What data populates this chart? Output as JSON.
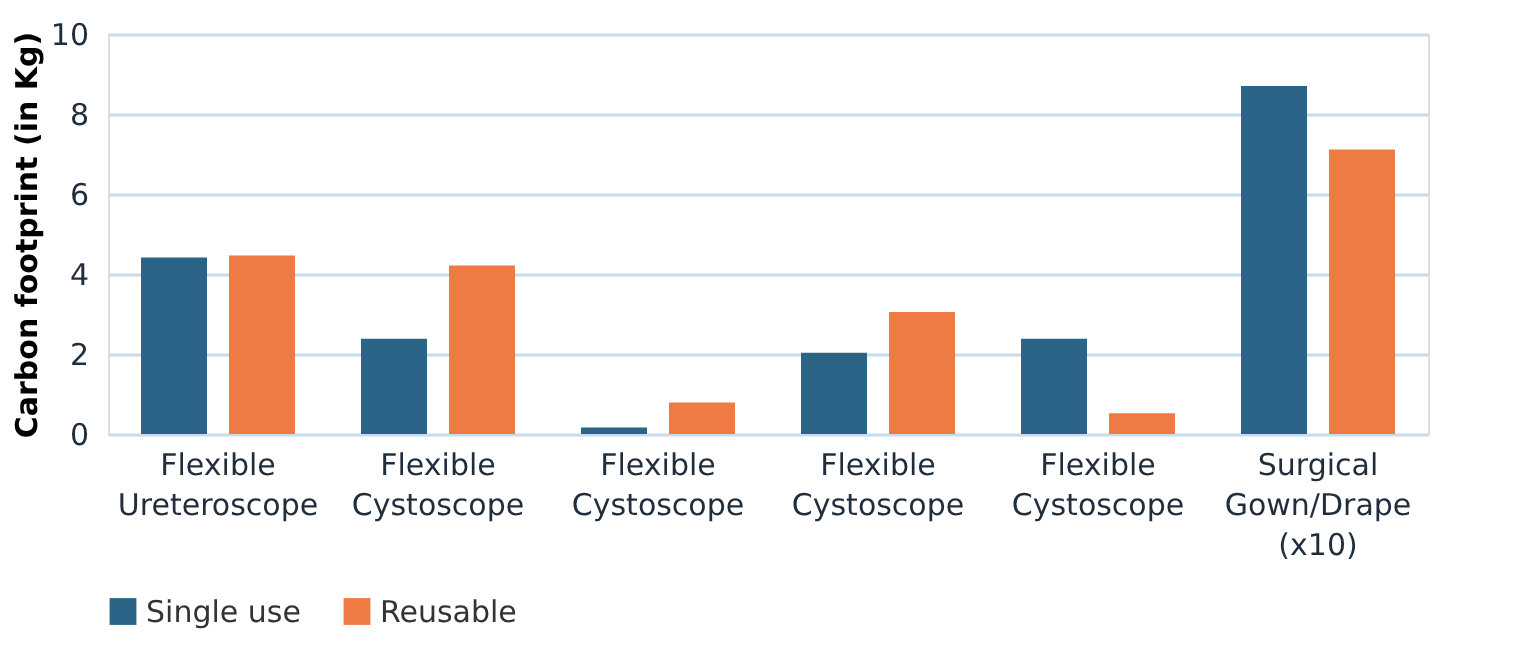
{
  "chart_data": {
    "type": "bar",
    "ylabel": "Carbon footprint (in Kg)",
    "categories": [
      "Flexible Ureteroscope",
      "Flexible Cystoscope",
      "Flexible Cystoscope",
      "Flexible Cystoscope",
      "Flexible Cystoscope",
      "Surgical Gown/Drape (x10)"
    ],
    "series": [
      {
        "name": "Single use",
        "color": "#2b6486",
        "values": [
          4.41,
          2.38,
          0.16,
          2.03,
          2.38,
          8.7
        ]
      },
      {
        "name": "Reusable",
        "color": "#ee7b43",
        "values": [
          4.46,
          4.21,
          0.79,
          3.05,
          0.52,
          7.11
        ]
      }
    ],
    "ylim": [
      0,
      10
    ],
    "yticks": [
      0,
      2,
      4,
      6,
      8,
      10
    ],
    "grid": "y",
    "legend": "bottom"
  }
}
